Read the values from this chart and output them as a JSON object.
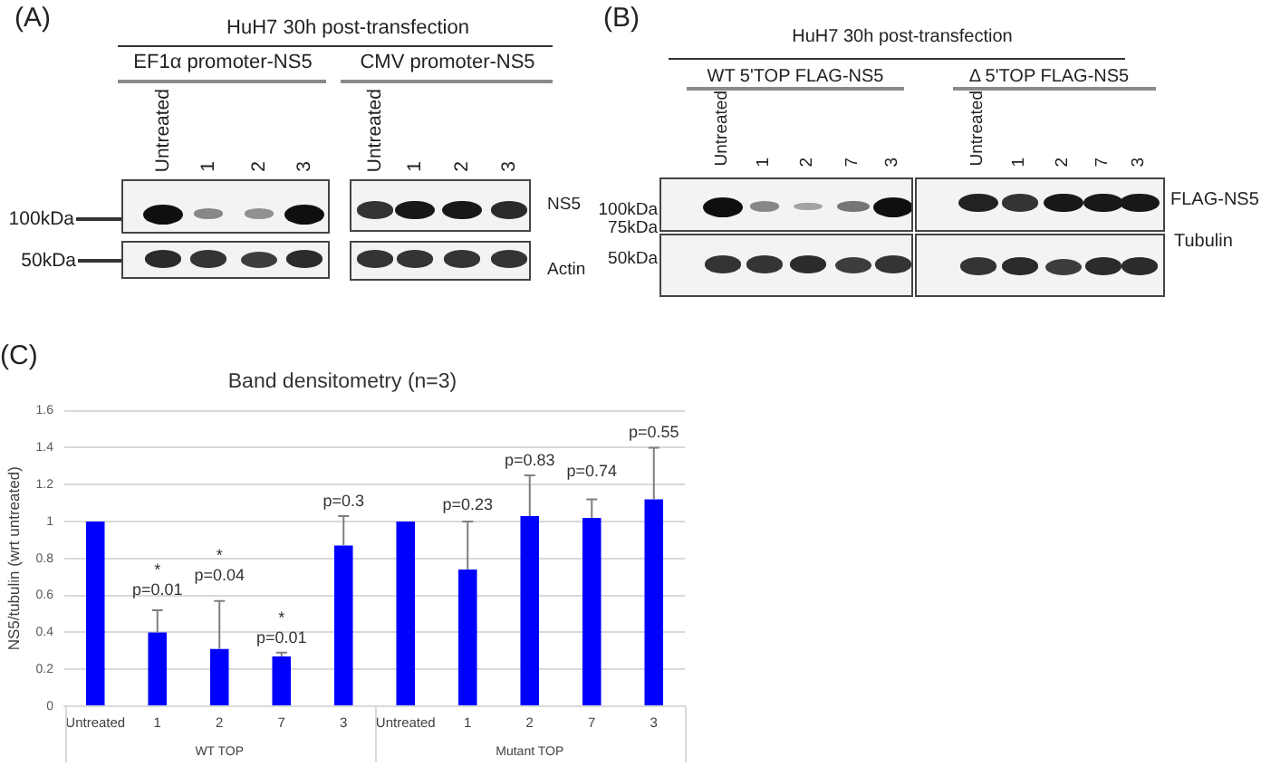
{
  "chart_data": [
    {
      "type": "other",
      "title": "HuH7 30h post-transfection",
      "categories": [
        "Untreated",
        "1",
        "2",
        "3",
        "Untreated",
        "1",
        "2",
        "3"
      ],
      "annotations": [
        "(A)",
        "EF1α promoter-NS5",
        "CMV promoter-NS5",
        "100kDa",
        "50kDa",
        "NS5",
        "Actin"
      ]
    },
    {
      "type": "other",
      "title": "HuH7 30h post-transfection",
      "categories": [
        "Untreated",
        "1",
        "2",
        "7",
        "3",
        "Untreated",
        "1",
        "2",
        "7",
        "3"
      ],
      "annotations": [
        "(B)",
        "WT 5'TOP FLAG-NS5",
        "Δ 5'TOP FLAG-NS5",
        "100kDa",
        "75kDa",
        "50kDa",
        "FLAG-NS5",
        "Tubulin"
      ]
    },
    {
      "type": "bar",
      "title": "Band densitometry (n=3)",
      "ylabel": "NS5/tubulin (wrt untreated)",
      "categories": [
        "Untreated",
        "1",
        "2",
        "7",
        "3",
        "Untreated",
        "1",
        "2",
        "7",
        "3"
      ],
      "values": [
        1,
        0.4,
        0.31,
        0.27,
        0.87,
        1,
        0.74,
        1.03,
        1.02,
        1.12
      ],
      "errors": [
        null,
        [
          0.4,
          0.52
        ],
        [
          0.31,
          0.57
        ],
        [
          0.27,
          0.29
        ],
        [
          0.87,
          1.03
        ],
        null,
        [
          0.74,
          1.0
        ],
        [
          1.03,
          1.25
        ],
        [
          1.02,
          1.12
        ],
        [
          1.12,
          1.4
        ]
      ],
      "color": "#0000ff",
      "ylim": [
        0,
        1.6
      ],
      "yticks": [
        0,
        0.2,
        0.4,
        0.6,
        0.8,
        1,
        1.2,
        1.4,
        1.6
      ],
      "grid": "y",
      "annotations": [
        "(C)",
        "WT TOP",
        "Mutant TOP",
        "*",
        "p=0.01",
        "*",
        "p=0.04",
        "*",
        "p=0.01",
        "p=0.3",
        "p=0.23",
        "p=0.83",
        "p=0.74",
        "p=0.55"
      ]
    }
  ]
}
